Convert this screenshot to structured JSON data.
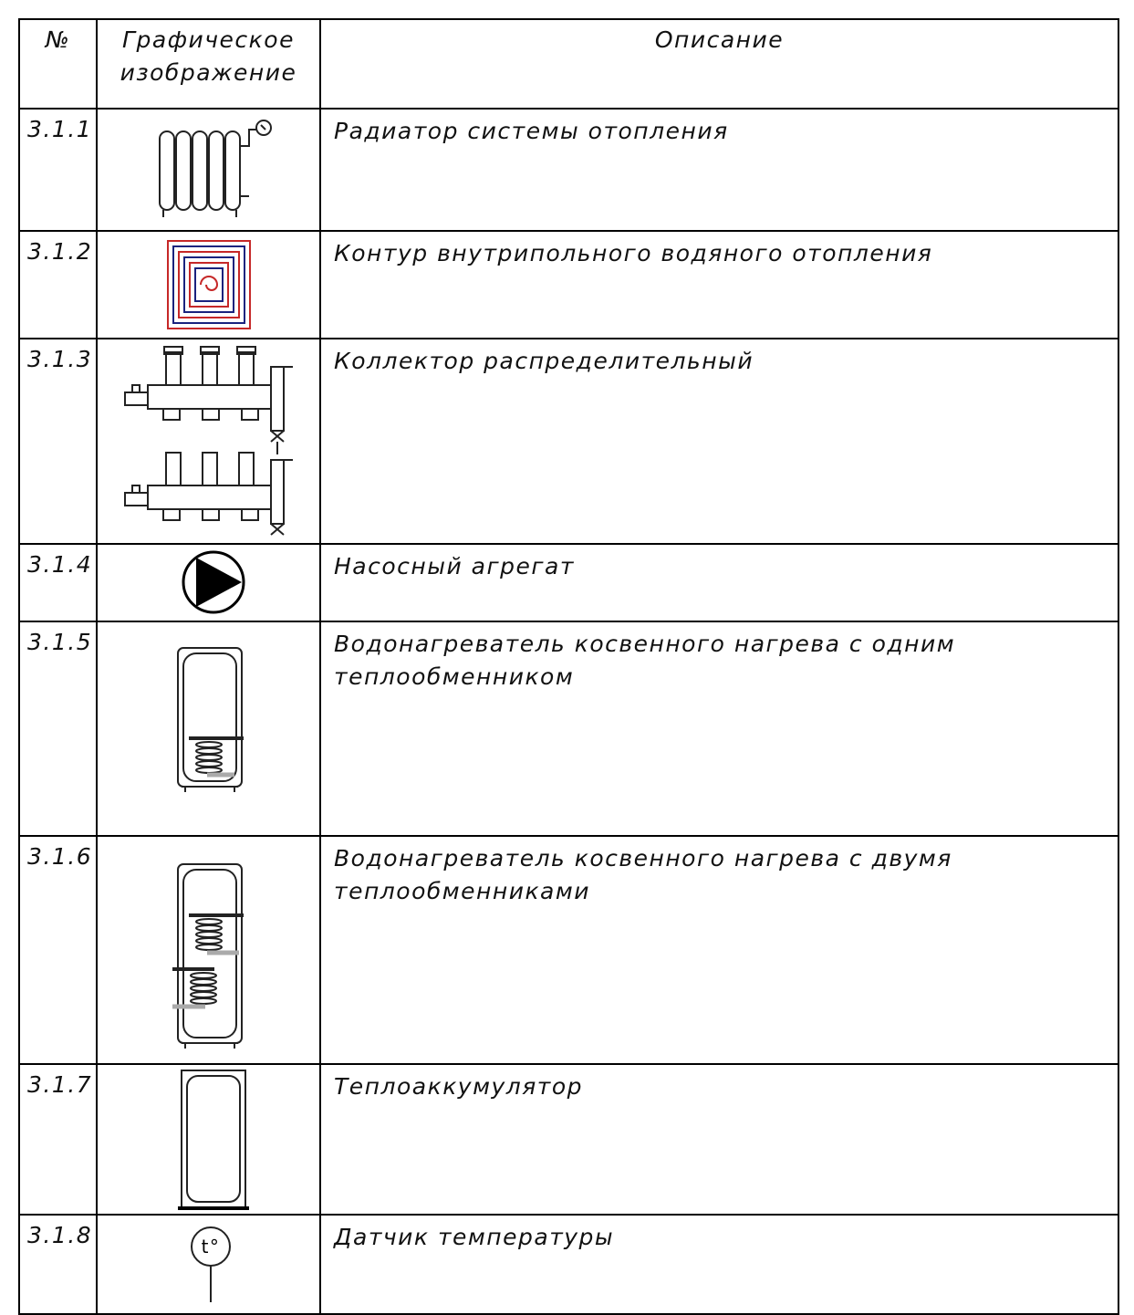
{
  "table": {
    "header": {
      "number": "№",
      "graphic": "Графическое изображение",
      "description": "Описание"
    },
    "rows": [
      {
        "number": "3.1.1",
        "description": "Радиатор системы отопления"
      },
      {
        "number": "3.1.2",
        "description": "Контур внутрипольного водяного отопления"
      },
      {
        "number": "3.1.3",
        "description": "Коллектор распределительный"
      },
      {
        "number": "3.1.4",
        "description": "Насосный агрегат"
      },
      {
        "number": "3.1.5",
        "description": "Водонагреватель косвенного нагрева с одним теплообменником"
      },
      {
        "number": "3.1.6",
        "description": "Водонагреватель косвенного нагрева с двумя теплообменниками"
      },
      {
        "number": "3.1.7",
        "description": "Теплоаккумулятор"
      },
      {
        "number": "3.1.8",
        "description": "Датчик температуры",
        "icon_label": "t°"
      }
    ]
  }
}
